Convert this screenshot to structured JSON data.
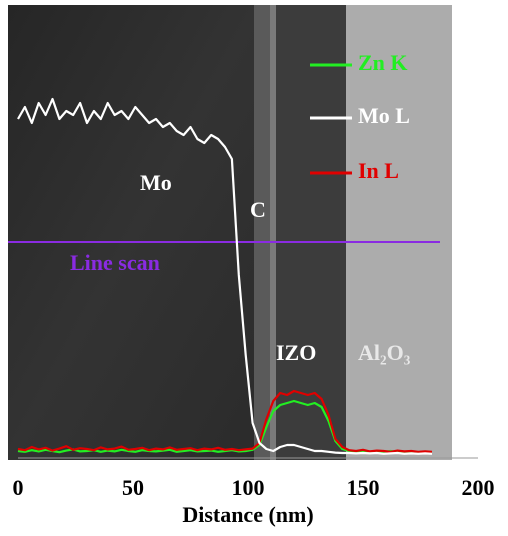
{
  "chart_data": {
    "type": "line",
    "x_label": "Distance (nm)",
    "xlim": [
      0,
      200
    ],
    "xticks": [
      0,
      50,
      100,
      150,
      200
    ],
    "ylim": [
      0,
      100
    ],
    "x": [
      0,
      3,
      6,
      9,
      12,
      15,
      18,
      21,
      24,
      27,
      30,
      33,
      36,
      39,
      42,
      45,
      48,
      51,
      54,
      57,
      60,
      63,
      66,
      69,
      72,
      75,
      78,
      81,
      84,
      87,
      90,
      93,
      96,
      99,
      102,
      105,
      108,
      111,
      114,
      117,
      120,
      123,
      126,
      129,
      132,
      135,
      138,
      141,
      144,
      147,
      150,
      153,
      156,
      159,
      162,
      165,
      168,
      171,
      174,
      177,
      180
    ],
    "series": [
      {
        "name": "Zn K",
        "color": "#22ee22",
        "values": [
          1,
          0.8,
          1.2,
          0.9,
          1.3,
          1,
          0.7,
          1.1,
          1.4,
          0.9,
          1,
          1.2,
          0.8,
          1.1,
          0.9,
          1.3,
          1,
          0.8,
          1.2,
          1,
          0.9,
          1.1,
          1.3,
          0.8,
          1,
          1.2,
          0.9,
          1,
          1.1,
          0.8,
          1,
          1.2,
          0.9,
          1,
          1.3,
          2.5,
          7,
          11,
          12.5,
          13,
          13.5,
          13,
          12.5,
          13,
          12,
          8.5,
          3.5,
          1.5,
          1,
          0.8,
          1,
          0.7,
          0.9,
          0.8,
          1,
          0.7,
          0.8,
          0.9,
          0.6,
          0.8,
          0.7
        ]
      },
      {
        "name": "Mo L",
        "color": "#ffffff",
        "values": [
          84,
          87,
          83,
          88,
          85,
          89,
          84,
          86,
          85,
          88,
          83,
          86,
          84,
          88,
          85,
          86,
          84,
          87,
          85,
          83,
          84,
          82,
          83,
          81,
          80,
          82,
          79,
          78,
          80,
          79,
          77,
          74,
          45,
          25,
          8,
          3,
          1.5,
          1,
          2,
          2.5,
          2.5,
          2,
          1.5,
          1,
          1,
          0.8,
          0.6,
          0.5,
          0.5,
          0.4,
          0.5,
          0.4,
          0.5,
          0.3,
          0.4,
          0.5,
          0.3,
          0.4,
          0.3,
          0.4,
          0.3
        ]
      },
      {
        "name": "In L",
        "color": "#e00000",
        "values": [
          1.5,
          1.2,
          2,
          1.4,
          1.8,
          1.1,
          1.6,
          2.2,
          1.3,
          1.7,
          1.5,
          1.2,
          1.9,
          1.4,
          1.6,
          2.1,
          1.3,
          1.5,
          1.8,
          1.2,
          1.6,
          1.4,
          1.9,
          1.3,
          1.5,
          1.7,
          1.2,
          1.6,
          1.4,
          1.8,
          1.3,
          1.5,
          1.2,
          1.4,
          1.6,
          3,
          9,
          13.5,
          15.5,
          15,
          16,
          15.5,
          15,
          15.5,
          14,
          10,
          4,
          2,
          1.2,
          1,
          1.3,
          0.9,
          1.1,
          1,
          0.8,
          1.1,
          0.9,
          1,
          0.8,
          0.9,
          0.8
        ]
      }
    ],
    "annotations": [
      {
        "text": "Mo",
        "color": "#ffffff"
      },
      {
        "text": "C",
        "color": "#ffffff"
      },
      {
        "text": "Line scan",
        "color": "#8a2be2"
      },
      {
        "text": "IZO",
        "color": "#ffffff"
      },
      {
        "text": "Al₂O₃",
        "color": "#e8e8e8"
      }
    ]
  }
}
